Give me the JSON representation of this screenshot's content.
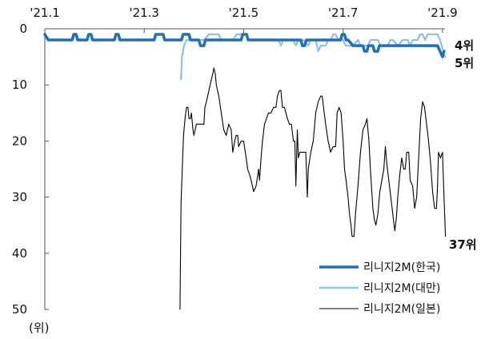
{
  "chart_data": {
    "type": "line",
    "title": "",
    "xlabel": "",
    "ylabel": "(위)",
    "ylim": [
      50,
      0
    ],
    "y_ticks": [
      0,
      10,
      20,
      30,
      40,
      50
    ],
    "x_ticks": [
      "'21.1",
      "'21.3",
      "'21.5",
      "'21.7",
      "'21.9"
    ],
    "x_tick_months": [
      1,
      3,
      5,
      7,
      9
    ],
    "xlim": [
      1,
      9.05
    ],
    "legend_position": "bottom-right",
    "grid": false,
    "series": [
      {
        "name": "리니지2M(한국)",
        "color": "#1f6fc0",
        "stroke_width": 3.5,
        "end_label": "4위",
        "points": [
          [
            1,
            1
          ],
          [
            1.07,
            2
          ],
          [
            1.55,
            2
          ],
          [
            1.58,
            1
          ],
          [
            1.63,
            1
          ],
          [
            1.66,
            2
          ],
          [
            1.85,
            2
          ],
          [
            1.88,
            1
          ],
          [
            1.93,
            1
          ],
          [
            1.96,
            2
          ],
          [
            2.4,
            2
          ],
          [
            2.43,
            1
          ],
          [
            2.48,
            1
          ],
          [
            2.51,
            2
          ],
          [
            3.2,
            2
          ],
          [
            3.23,
            1
          ],
          [
            3.38,
            1
          ],
          [
            3.41,
            2
          ],
          [
            3.75,
            2
          ],
          [
            3.78,
            1
          ],
          [
            3.9,
            1
          ],
          [
            3.93,
            2
          ],
          [
            4.1,
            2
          ],
          [
            4.13,
            3
          ],
          [
            4.2,
            3
          ],
          [
            4.23,
            2
          ],
          [
            4.95,
            2
          ],
          [
            4.98,
            1
          ],
          [
            5.06,
            1
          ],
          [
            5.09,
            2
          ],
          [
            6.15,
            2
          ],
          [
            6.18,
            3
          ],
          [
            6.23,
            3
          ],
          [
            6.26,
            2
          ],
          [
            6.95,
            2
          ],
          [
            6.98,
            1
          ],
          [
            7.03,
            1
          ],
          [
            7.06,
            2
          ],
          [
            7.1,
            2
          ],
          [
            7.2,
            3
          ],
          [
            7.4,
            3
          ],
          [
            7.43,
            4
          ],
          [
            7.48,
            4
          ],
          [
            7.51,
            3
          ],
          [
            7.6,
            3
          ],
          [
            7.63,
            4
          ],
          [
            7.7,
            4
          ],
          [
            7.73,
            3
          ],
          [
            8.5,
            3
          ],
          [
            8.55,
            3
          ],
          [
            8.9,
            3
          ],
          [
            8.95,
            4
          ],
          [
            9,
            5
          ],
          [
            9.03,
            4
          ]
        ]
      },
      {
        "name": "리니지2M(대만)",
        "color": "#8dc0ea",
        "stroke_width": 2.2,
        "end_label": "5위",
        "points": [
          [
            3.74,
            9
          ],
          [
            3.76,
            5
          ],
          [
            3.8,
            3
          ],
          [
            3.85,
            2
          ],
          [
            4.0,
            2
          ],
          [
            4.05,
            2
          ],
          [
            4.2,
            2
          ],
          [
            4.3,
            1
          ],
          [
            4.5,
            1
          ],
          [
            4.55,
            2
          ],
          [
            4.8,
            2
          ],
          [
            4.85,
            1
          ],
          [
            5.05,
            1
          ],
          [
            5.1,
            2
          ],
          [
            5.7,
            2
          ],
          [
            5.75,
            3
          ],
          [
            5.8,
            2
          ],
          [
            6.0,
            2
          ],
          [
            6.05,
            3
          ],
          [
            6.1,
            2
          ],
          [
            6.2,
            2
          ],
          [
            6.3,
            3
          ],
          [
            6.35,
            2
          ],
          [
            6.45,
            2
          ],
          [
            6.5,
            4
          ],
          [
            6.55,
            3
          ],
          [
            6.65,
            3
          ],
          [
            6.7,
            2
          ],
          [
            6.75,
            2
          ],
          [
            6.8,
            1
          ],
          [
            6.85,
            1
          ],
          [
            6.9,
            2
          ],
          [
            7.0,
            2
          ],
          [
            7.05,
            3
          ],
          [
            7.2,
            3
          ],
          [
            7.3,
            2
          ],
          [
            7.35,
            3
          ],
          [
            7.5,
            3
          ],
          [
            7.55,
            2
          ],
          [
            7.7,
            2
          ],
          [
            7.75,
            3
          ],
          [
            7.9,
            3
          ],
          [
            7.95,
            2
          ],
          [
            8.0,
            2
          ],
          [
            8.1,
            3
          ],
          [
            8.2,
            2
          ],
          [
            8.3,
            2
          ],
          [
            8.35,
            3
          ],
          [
            8.4,
            2
          ],
          [
            8.5,
            2
          ],
          [
            8.55,
            1
          ],
          [
            8.6,
            1
          ],
          [
            8.65,
            2
          ],
          [
            8.7,
            1
          ],
          [
            8.9,
            1
          ],
          [
            8.95,
            2
          ],
          [
            9.05,
            5
          ]
        ]
      },
      {
        "name": "리니지2M(일본)",
        "color": "#000000",
        "stroke_width": 1.1,
        "end_label": "37위",
        "points": [
          [
            3.72,
            50
          ],
          [
            3.74,
            31
          ],
          [
            3.79,
            19
          ],
          [
            3.82,
            16
          ],
          [
            3.85,
            14
          ],
          [
            3.88,
            14
          ],
          [
            3.9,
            16
          ],
          [
            3.93,
            16
          ],
          [
            3.95,
            15
          ],
          [
            3.98,
            18
          ],
          [
            4.0,
            19
          ],
          [
            4.05,
            17
          ],
          [
            4.1,
            17
          ],
          [
            4.15,
            17
          ],
          [
            4.2,
            17
          ],
          [
            4.22,
            14
          ],
          [
            4.25,
            13
          ],
          [
            4.3,
            11
          ],
          [
            4.35,
            9
          ],
          [
            4.38,
            8
          ],
          [
            4.4,
            7
          ],
          [
            4.43,
            8
          ],
          [
            4.45,
            10
          ],
          [
            4.5,
            12
          ],
          [
            4.55,
            15
          ],
          [
            4.6,
            18
          ],
          [
            4.65,
            19
          ],
          [
            4.7,
            17
          ],
          [
            4.75,
            18
          ],
          [
            4.78,
            22
          ],
          [
            4.82,
            20
          ],
          [
            4.85,
            19
          ],
          [
            4.88,
            19
          ],
          [
            4.9,
            21
          ],
          [
            4.95,
            20
          ],
          [
            5.0,
            20
          ],
          [
            5.05,
            23
          ],
          [
            5.08,
            25
          ],
          [
            5.12,
            26
          ],
          [
            5.15,
            27
          ],
          [
            5.2,
            29
          ],
          [
            5.25,
            28
          ],
          [
            5.3,
            25
          ],
          [
            5.32,
            27
          ],
          [
            5.35,
            23
          ],
          [
            5.38,
            20
          ],
          [
            5.42,
            17
          ],
          [
            5.46,
            16
          ],
          [
            5.5,
            15
          ],
          [
            5.55,
            15
          ],
          [
            5.6,
            14
          ],
          [
            5.65,
            14
          ],
          [
            5.68,
            12
          ],
          [
            5.72,
            11
          ],
          [
            5.75,
            11
          ],
          [
            5.78,
            14
          ],
          [
            5.82,
            14
          ],
          [
            5.85,
            15
          ],
          [
            5.88,
            16
          ],
          [
            5.92,
            17
          ],
          [
            5.96,
            17
          ],
          [
            6.0,
            20
          ],
          [
            6.03,
            20
          ],
          [
            6.05,
            28
          ],
          [
            6.08,
            18
          ],
          [
            6.1,
            23
          ],
          [
            6.13,
            22
          ],
          [
            6.2,
            22
          ],
          [
            6.25,
            22
          ],
          [
            6.28,
            30
          ],
          [
            6.3,
            25
          ],
          [
            6.35,
            22
          ],
          [
            6.4,
            20
          ],
          [
            6.45,
            15
          ],
          [
            6.5,
            13
          ],
          [
            6.55,
            12
          ],
          [
            6.58,
            12
          ],
          [
            6.62,
            15
          ],
          [
            6.65,
            17
          ],
          [
            6.7,
            20
          ],
          [
            6.75,
            22
          ],
          [
            6.8,
            21
          ],
          [
            6.85,
            21
          ],
          [
            6.88,
            15
          ],
          [
            6.92,
            14
          ],
          [
            6.96,
            15
          ],
          [
            7.0,
            20
          ],
          [
            7.03,
            25
          ],
          [
            7.06,
            27
          ],
          [
            7.1,
            30
          ],
          [
            7.13,
            33
          ],
          [
            7.16,
            35
          ],
          [
            7.18,
            37
          ],
          [
            7.22,
            37
          ],
          [
            7.25,
            33
          ],
          [
            7.3,
            28
          ],
          [
            7.35,
            22
          ],
          [
            7.4,
            18
          ],
          [
            7.45,
            17
          ],
          [
            7.48,
            16
          ],
          [
            7.52,
            20
          ],
          [
            7.55,
            25
          ],
          [
            7.6,
            32
          ],
          [
            7.63,
            34
          ],
          [
            7.66,
            35
          ],
          [
            7.7,
            33
          ],
          [
            7.74,
            29
          ],
          [
            7.78,
            27
          ],
          [
            7.82,
            25
          ],
          [
            7.85,
            21
          ],
          [
            7.88,
            24
          ],
          [
            7.92,
            27
          ],
          [
            7.96,
            30
          ],
          [
            8.0,
            33
          ],
          [
            8.04,
            36
          ],
          [
            8.07,
            34
          ],
          [
            8.1,
            30
          ],
          [
            8.14,
            26
          ],
          [
            8.18,
            23
          ],
          [
            8.22,
            25
          ],
          [
            8.25,
            25
          ],
          [
            8.28,
            22
          ],
          [
            8.32,
            22
          ],
          [
            8.35,
            27
          ],
          [
            8.4,
            28
          ],
          [
            8.44,
            32
          ],
          [
            8.48,
            30
          ],
          [
            8.52,
            23
          ],
          [
            8.56,
            16
          ],
          [
            8.6,
            13
          ],
          [
            8.64,
            14
          ],
          [
            8.68,
            17
          ],
          [
            8.72,
            20
          ],
          [
            8.76,
            24
          ],
          [
            8.8,
            29
          ],
          [
            8.84,
            32
          ],
          [
            8.88,
            32
          ],
          [
            8.9,
            28
          ],
          [
            8.92,
            22
          ],
          [
            8.96,
            23
          ],
          [
            9.0,
            22
          ],
          [
            9.03,
            30
          ],
          [
            9.06,
            37
          ]
        ]
      }
    ]
  }
}
